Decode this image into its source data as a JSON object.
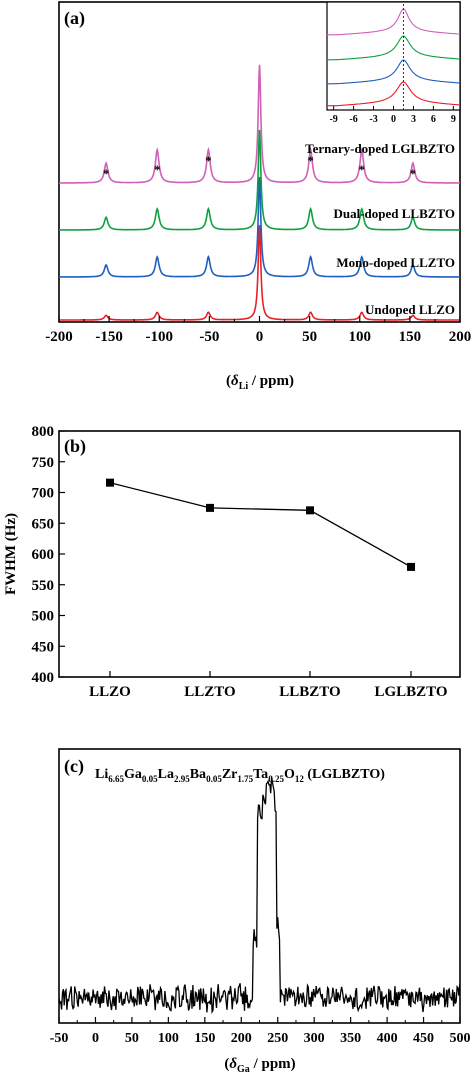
{
  "colors": {
    "undoped": "#e8202a",
    "mono": "#1f5fbf",
    "dual": "#10a040",
    "ternary": "#d060b8",
    "black": "#000000",
    "dotted": "#333333"
  },
  "chart_data": [
    {
      "id": "a",
      "panel_label": "(a)",
      "type": "line",
      "xlabel_symbol": "δ",
      "xlabel_sub": "Li",
      "xlabel_unit": " / ppm)",
      "xlabel_open": "(",
      "xlim": [
        -200,
        200
      ],
      "x_ticks": [
        "-200",
        "-150",
        "-100",
        "-50",
        "0",
        "50",
        "100",
        "150",
        "200"
      ],
      "x_tick_values": [
        -200,
        -150,
        -100,
        -50,
        0,
        50,
        100,
        150,
        200
      ],
      "series": [
        {
          "name": "Undoped LLZO",
          "color_key": "undoped",
          "main_peak": 0,
          "main_height": 1.0,
          "sideband_height": 0.08
        },
        {
          "name": "Mono-doped LLZTO",
          "color_key": "mono",
          "main_peak": 0,
          "main_height": 1.0,
          "sideband_height": 0.2
        },
        {
          "name": "Dual-doped LLBZTO",
          "color_key": "dual",
          "main_peak": 0,
          "main_height": 1.0,
          "sideband_height": 0.21
        },
        {
          "name": "Ternary-doped LGLBZTO",
          "color_key": "ternary",
          "main_peak": 0,
          "main_height": 1.0,
          "sideband_height": 0.28
        }
      ],
      "sideband_positions": [
        -153,
        -102,
        -51,
        51,
        102,
        153
      ],
      "sideband_marker": "*",
      "inset": {
        "xlim": [
          -10,
          10
        ],
        "x_ticks": [
          "-9",
          "-6",
          "-3",
          "0",
          "3",
          "6",
          "9"
        ],
        "x_tick_values": [
          -9,
          -6,
          -3,
          0,
          3,
          6,
          9
        ],
        "peak_center": 1.5,
        "dotted_line_at": 1.5
      }
    },
    {
      "id": "b",
      "panel_label": "(b)",
      "type": "line",
      "ylabel": "FWHM (Hz)",
      "categories": [
        "LLZO",
        "LLZTO",
        "LLBZTO",
        "LGLBZTO"
      ],
      "values": [
        716,
        675,
        671,
        579
      ],
      "ylim": [
        400,
        800
      ],
      "y_ticks": [
        "400",
        "450",
        "500",
        "550",
        "600",
        "650",
        "700",
        "750",
        "800"
      ],
      "y_tick_values": [
        400,
        450,
        500,
        550,
        600,
        650,
        700,
        750,
        800
      ]
    },
    {
      "id": "c",
      "panel_label": "(c)",
      "type": "line",
      "formula": [
        {
          "t": "Li",
          "s": false
        },
        {
          "t": "6.65",
          "s": true
        },
        {
          "t": "Ga",
          "s": false
        },
        {
          "t": "0.05",
          "s": true
        },
        {
          "t": "La",
          "s": false
        },
        {
          "t": "2.95",
          "s": true
        },
        {
          "t": "Ba",
          "s": false
        },
        {
          "t": "0.05",
          "s": true
        },
        {
          "t": "Zr",
          "s": false
        },
        {
          "t": "1.75",
          "s": true
        },
        {
          "t": "Ta",
          "s": false
        },
        {
          "t": "0.25",
          "s": true
        },
        {
          "t": "O",
          "s": false
        },
        {
          "t": "12",
          "s": true
        },
        {
          "t": " (LGLBZTO)",
          "s": false
        }
      ],
      "xlabel_symbol": "δ",
      "xlabel_sub": "Ga",
      "xlabel_unit": " / ppm)",
      "xlabel_open": "(",
      "xlim": [
        -50,
        500
      ],
      "x_ticks": [
        "-50",
        "0",
        "50",
        "100",
        "150",
        "200",
        "250",
        "300",
        "350",
        "400",
        "450",
        "500"
      ],
      "x_tick_values": [
        -50,
        0,
        50,
        100,
        150,
        200,
        250,
        300,
        350,
        400,
        450,
        500
      ],
      "peak_range": [
        222,
        248
      ],
      "peak_max_at": 237
    }
  ]
}
